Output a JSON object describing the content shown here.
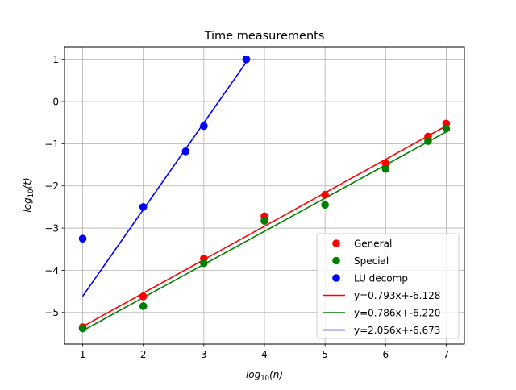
{
  "chart_data": {
    "type": "scatter",
    "title": "Time measurements",
    "xlabel": {
      "base": "log",
      "sub": "10",
      "arg": "(n)"
    },
    "ylabel": {
      "base": "log",
      "sub": "10",
      "arg": "(t)"
    },
    "xlim": [
      0.7,
      7.3
    ],
    "ylim": [
      -5.75,
      1.3
    ],
    "xticks": [
      1,
      2,
      3,
      4,
      5,
      6,
      7
    ],
    "xtick_labels": [
      "1",
      "2",
      "3",
      "4",
      "5",
      "6",
      "7"
    ],
    "yticks": [
      1,
      0,
      -1,
      -2,
      -3,
      -4,
      -5
    ],
    "ytick_labels": [
      "1",
      "0",
      "−1",
      "−2",
      "−3",
      "−4",
      "−5"
    ],
    "grid": true,
    "legend_position": "lower-right",
    "scatter_series": [
      {
        "name": "General",
        "color": "#ff0000",
        "x": [
          1,
          2,
          3,
          4,
          5,
          6,
          6.7,
          7
        ],
        "y": [
          -5.35,
          -4.62,
          -3.72,
          -2.72,
          -2.21,
          -1.47,
          -0.83,
          -0.52
        ]
      },
      {
        "name": "Special",
        "color": "#008000",
        "x": [
          1,
          2,
          3,
          4,
          5,
          6,
          6.7,
          7
        ],
        "y": [
          -5.38,
          -4.85,
          -3.83,
          -2.83,
          -2.45,
          -1.6,
          -0.94,
          -0.64
        ]
      },
      {
        "name": "LU decomp",
        "color": "#0000ff",
        "x": [
          1,
          2,
          2.7,
          3,
          3.7
        ],
        "y": [
          -3.25,
          -2.5,
          -1.18,
          -0.58,
          1.0
        ]
      }
    ],
    "fit_lines": [
      {
        "name": "y=0.793x+-6.128",
        "color": "#ff0000",
        "slope": 0.793,
        "intercept": -6.128,
        "x_range": [
          1,
          7
        ]
      },
      {
        "name": "y=0.786x+-6.220",
        "color": "#008000",
        "slope": 0.786,
        "intercept": -6.22,
        "x_range": [
          1,
          7
        ]
      },
      {
        "name": "y=2.056x+-6.673",
        "color": "#0000ff",
        "slope": 2.056,
        "intercept": -6.673,
        "x_range": [
          1,
          3.7
        ]
      }
    ]
  }
}
